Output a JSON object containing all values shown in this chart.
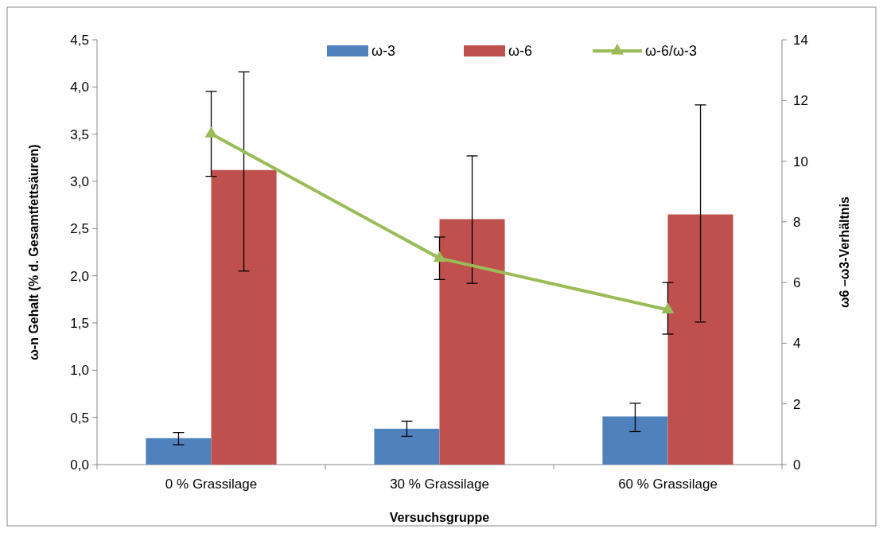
{
  "chart_data": {
    "type": "bar",
    "categories": [
      "0 % Grassilage",
      "30 % Grassilage",
      "60 % Grassilage"
    ],
    "xlabel": "Versuchsgruppe",
    "ylabel": "ω-n Gehalt (% d. Gesamtfettsäuren)",
    "y2label": "ω6 –ω3-Verhältnis",
    "series": [
      {
        "name": "ω-3",
        "color": "#4f81bd",
        "values": [
          0.28,
          0.38,
          0.51
        ],
        "errors": [
          [
            0.21,
            0.34
          ],
          [
            0.3,
            0.46
          ],
          [
            0.35,
            0.65
          ]
        ]
      },
      {
        "name": "ω-6",
        "color": "#c0504d",
        "values": [
          3.12,
          2.6,
          2.65
        ],
        "errors": [
          [
            2.05,
            4.16
          ],
          [
            1.92,
            3.27
          ],
          [
            1.51,
            3.81
          ]
        ]
      },
      {
        "name": "ω-6/ω-3",
        "type": "line",
        "axis": "y2",
        "color": "#9bbb59",
        "marker": "triangle",
        "values": [
          10.9,
          6.8,
          5.1
        ],
        "errors": [
          [
            9.5,
            12.3
          ],
          [
            6.1,
            7.5
          ],
          [
            4.3,
            6.0
          ]
        ]
      }
    ],
    "ylim": [
      0,
      4.5
    ],
    "yticks": [
      {
        "value": 0,
        "label": "0,0"
      },
      {
        "value": 0.5,
        "label": "0,5"
      },
      {
        "value": 1,
        "label": "1,0"
      },
      {
        "value": 1.5,
        "label": "1,5"
      },
      {
        "value": 2,
        "label": "2,0"
      },
      {
        "value": 2.5,
        "label": "2,5"
      },
      {
        "value": 3,
        "label": "3,0"
      },
      {
        "value": 3.5,
        "label": "3,5"
      },
      {
        "value": 4,
        "label": "4,0"
      },
      {
        "value": 4.5,
        "label": "4,5"
      }
    ],
    "y2lim": [
      0,
      14
    ],
    "y2ticks": [
      0,
      2,
      4,
      6,
      8,
      10,
      12,
      14
    ],
    "legend": "top",
    "grid": false
  }
}
